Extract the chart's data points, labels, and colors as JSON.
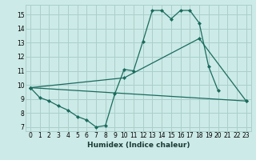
{
  "title": "",
  "xlabel": "Humidex (Indice chaleur)",
  "bg_color": "#cceae7",
  "grid_color": "#aacfcc",
  "line_color": "#1a6b5e",
  "xlim": [
    -0.5,
    23.5
  ],
  "ylim": [
    6.7,
    15.7
  ],
  "xticks": [
    0,
    1,
    2,
    3,
    4,
    5,
    6,
    7,
    8,
    9,
    10,
    11,
    12,
    13,
    14,
    15,
    16,
    17,
    18,
    19,
    20,
    21,
    22,
    23
  ],
  "yticks": [
    7,
    8,
    9,
    10,
    11,
    12,
    13,
    14,
    15
  ],
  "curve1_x": [
    0,
    1,
    2,
    3,
    4,
    5,
    6,
    7,
    8,
    9,
    10,
    11,
    12,
    13,
    14,
    15,
    16,
    17,
    18,
    19,
    20
  ],
  "curve1_y": [
    9.8,
    9.1,
    8.85,
    8.5,
    8.2,
    7.75,
    7.5,
    7.0,
    7.1,
    9.35,
    11.1,
    11.0,
    13.1,
    15.3,
    15.3,
    14.7,
    15.3,
    15.3,
    14.4,
    11.3,
    9.6
  ],
  "curve2_x": [
    0,
    10,
    18,
    23
  ],
  "curve2_y": [
    9.8,
    10.5,
    13.3,
    8.85
  ],
  "curve3_x": [
    0,
    23
  ],
  "curve3_y": [
    9.8,
    8.85
  ]
}
